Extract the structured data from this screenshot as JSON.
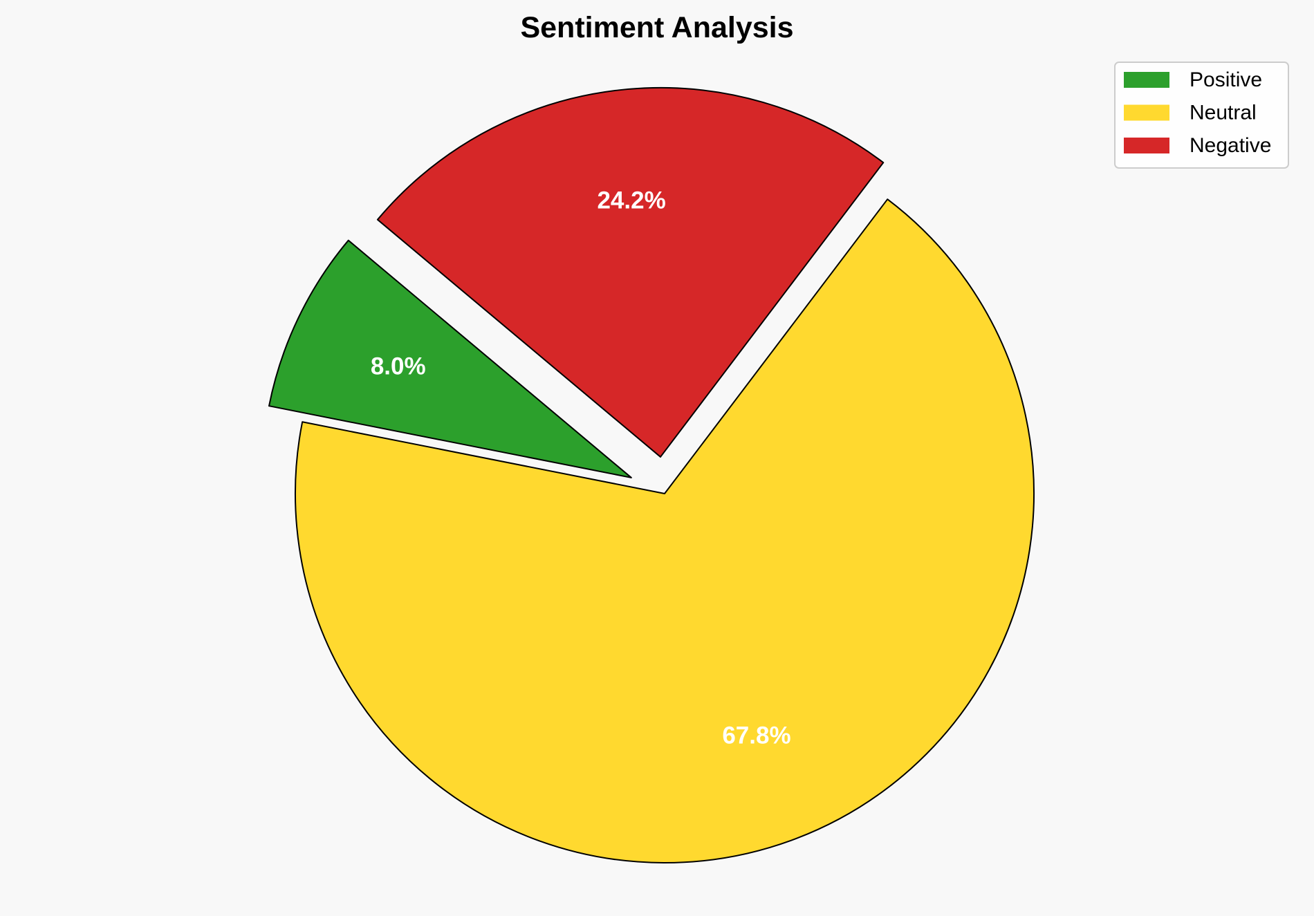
{
  "chart_data": {
    "type": "pie",
    "title": "Sentiment Analysis",
    "categories": [
      "Positive",
      "Neutral",
      "Negative"
    ],
    "values": [
      8.0,
      67.8,
      24.2
    ],
    "labels": [
      "8.0%",
      "67.8%",
      "24.2%"
    ],
    "colors": [
      "#2ca02c",
      "#ffd92f",
      "#d62728"
    ],
    "explode": [
      0.1,
      0,
      0.1
    ],
    "start_angle": 140,
    "counterclockwise": true,
    "edge_color": "#000000",
    "label_color": "#ffffff",
    "legend_placement": "top-right",
    "background": "#f8f8f8"
  }
}
